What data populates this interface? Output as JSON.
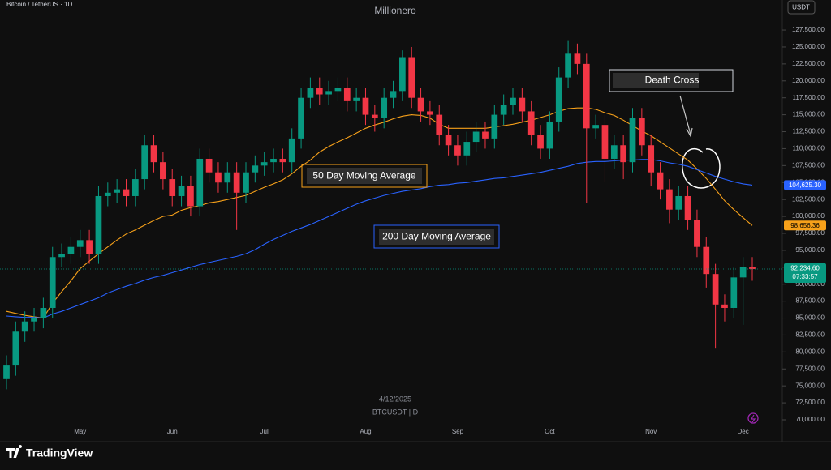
{
  "chart_data": {
    "type": "candlestick",
    "header": "Bitcoin / TetherUS · 1D",
    "title": "Millionero",
    "currency": "USDT",
    "categories": [
      null,
      null,
      null,
      null,
      null,
      null,
      null,
      null,
      "May",
      null,
      null,
      null,
      null,
      null,
      null,
      null,
      null,
      null,
      "Jun",
      null,
      null,
      null,
      null,
      null,
      null,
      null,
      null,
      null,
      "Jul",
      null,
      null,
      null,
      null,
      null,
      null,
      null,
      null,
      null,
      null,
      "Aug",
      null,
      null,
      null,
      null,
      null,
      null,
      null,
      null,
      null,
      "Sep",
      null,
      null,
      null,
      null,
      null,
      null,
      null,
      null,
      null,
      "Oct",
      null,
      null,
      null,
      null,
      null,
      null,
      null,
      null,
      null,
      null,
      "Nov",
      null,
      null,
      null,
      null,
      null,
      null,
      null,
      null,
      null,
      "Dec",
      null
    ],
    "open": [
      76000,
      78000,
      83000,
      84500,
      85000,
      86500,
      94000,
      94500,
      95500,
      96500,
      94500,
      103000,
      103500,
      104000,
      103000,
      105500,
      110500,
      108000,
      105500,
      103000,
      104500,
      101500,
      108500,
      106500,
      105000,
      106500,
      103500,
      106500,
      107500,
      108000,
      108500,
      108000,
      111500,
      117500,
      119000,
      118000,
      118500,
      119000,
      117000,
      117500,
      115000,
      114500,
      117500,
      118500,
      123500,
      117500,
      115500,
      115000,
      112000,
      110500,
      109000,
      111000,
      112500,
      111500,
      115000,
      116500,
      117500,
      115500,
      112000,
      110000,
      114000,
      120500,
      124000,
      122500,
      113000,
      113500,
      108500,
      110500,
      108000,
      114500,
      110500,
      106500,
      104000,
      101000,
      103000,
      99500,
      95500,
      91500,
      87000,
      86500,
      91000,
      92500
    ],
    "high": [
      79500,
      84500,
      86000,
      86500,
      88000,
      95500,
      96000,
      97000,
      98000,
      98000,
      104500,
      105000,
      105500,
      105500,
      107000,
      112000,
      112000,
      109500,
      107000,
      106000,
      106000,
      110000,
      110000,
      108000,
      108000,
      108000,
      108000,
      109000,
      109500,
      110000,
      110000,
      113000,
      119000,
      120500,
      120500,
      120000,
      120500,
      120500,
      119000,
      119000,
      116500,
      119000,
      120000,
      124500,
      125000,
      119000,
      117000,
      116500,
      113500,
      112000,
      112500,
      114000,
      114000,
      116500,
      118000,
      119000,
      119000,
      117000,
      113500,
      115500,
      122000,
      126000,
      125500,
      124000,
      115000,
      115000,
      112000,
      112000,
      116000,
      116000,
      112000,
      108000,
      105500,
      104500,
      104500,
      101000,
      97000,
      93000,
      88500,
      92500,
      94000,
      94000
    ],
    "low": [
      74500,
      76500,
      81500,
      83000,
      83500,
      85000,
      92500,
      93000,
      94000,
      93000,
      93000,
      101500,
      102000,
      101500,
      101500,
      104000,
      106500,
      104000,
      101500,
      101500,
      100000,
      100000,
      105000,
      103500,
      103500,
      98000,
      102000,
      105000,
      106000,
      106500,
      106500,
      106500,
      110000,
      116000,
      116500,
      116500,
      117000,
      115500,
      115500,
      113500,
      112500,
      113000,
      116000,
      117000,
      116000,
      114000,
      113500,
      110500,
      109000,
      107500,
      107500,
      109500,
      110000,
      110000,
      113500,
      115000,
      114000,
      110500,
      108500,
      108500,
      112500,
      119000,
      121000,
      102000,
      111500,
      105000,
      107000,
      105500,
      106500,
      109000,
      104500,
      102500,
      99000,
      99500,
      98000,
      94000,
      89500,
      80500,
      84500,
      85000,
      84000,
      90500
    ],
    "close": [
      78000,
      83000,
      84500,
      85000,
      86500,
      94000,
      94500,
      95500,
      96500,
      94500,
      103000,
      103500,
      104000,
      103000,
      105500,
      110500,
      108000,
      105500,
      103000,
      104500,
      101500,
      108500,
      106500,
      105000,
      106500,
      103500,
      106500,
      107500,
      108000,
      108500,
      108000,
      111500,
      117500,
      119000,
      118000,
      118500,
      119000,
      117000,
      117500,
      115000,
      114500,
      117500,
      118500,
      123500,
      117500,
      115500,
      115000,
      112000,
      110500,
      109000,
      111000,
      112500,
      111500,
      115000,
      116500,
      117500,
      115500,
      112000,
      110000,
      114000,
      120500,
      124000,
      122500,
      113000,
      113500,
      108500,
      110500,
      108000,
      114500,
      110500,
      106500,
      104000,
      101000,
      103000,
      99500,
      95500,
      91500,
      87000,
      86500,
      91000,
      92500,
      92234.6
    ],
    "up_color": "#089981",
    "down_color": "#f23645",
    "close_label": "92,234.60",
    "countdown": "07:33:57",
    "series": [
      {
        "name": "50 Day Moving Average",
        "color": "#f7a11a",
        "last_label": "98,656.36",
        "values": [
          86000,
          85700,
          85400,
          85200,
          85000,
          87200,
          88900,
          90500,
          92300,
          93400,
          94500,
          95500,
          96500,
          97400,
          98000,
          98700,
          99400,
          100000,
          100200,
          100900,
          101300,
          101600,
          102000,
          102200,
          102500,
          102800,
          103100,
          103700,
          104300,
          104800,
          105400,
          106300,
          107400,
          108300,
          109500,
          110300,
          111000,
          111600,
          112300,
          113000,
          113500,
          113900,
          114400,
          114800,
          115000,
          114900,
          114500,
          113600,
          113000,
          113000,
          113000,
          113000,
          113000,
          113200,
          113400,
          113600,
          113900,
          114200,
          114600,
          115000,
          115500,
          115900,
          116000,
          116000,
          115800,
          115300,
          114900,
          114200,
          113400,
          112600,
          111900,
          111000,
          110100,
          109200,
          108300,
          107000,
          105600,
          104000,
          102300,
          101000,
          99800,
          98656.36
        ]
      },
      {
        "name": "200 Day Moving Average",
        "color": "#2962ff",
        "last_label": "104,625.30",
        "values": [
          85300,
          85200,
          85100,
          85100,
          85000,
          85600,
          86000,
          86500,
          87000,
          87500,
          88000,
          88700,
          89200,
          89700,
          90100,
          90600,
          91000,
          91300,
          91700,
          92100,
          92500,
          92900,
          93200,
          93500,
          93800,
          94100,
          94500,
          95100,
          95900,
          96600,
          97200,
          97800,
          98300,
          98800,
          99400,
          100000,
          100600,
          101200,
          101800,
          102300,
          102700,
          103100,
          103400,
          103700,
          103900,
          104100,
          104400,
          104600,
          104700,
          104900,
          105000,
          105200,
          105400,
          105600,
          105700,
          105900,
          106100,
          106300,
          106500,
          106800,
          107100,
          107400,
          107800,
          108000,
          108100,
          108100,
          108200,
          108300,
          108300,
          108400,
          108400,
          108200,
          107900,
          107700,
          107400,
          106900,
          106400,
          105900,
          105500,
          105100,
          104800,
          104625.3
        ]
      }
    ],
    "annotation": "Death Cross",
    "date_label": "4/12/2025",
    "symbol_label": "BTCUSDT | D",
    "ylim": [
      67370,
      131930
    ],
    "yticks": [
      {
        "value": 70000,
        "label": "70,000.00"
      },
      {
        "value": 72500,
        "label": "72,500.00"
      },
      {
        "value": 75000,
        "label": "75,000.00"
      },
      {
        "value": 77500,
        "label": "77,500.00"
      },
      {
        "value": 80000,
        "label": "80,000.00"
      },
      {
        "value": 82500,
        "label": "82,500.00"
      },
      {
        "value": 85000,
        "label": "85,000.00"
      },
      {
        "value": 87500,
        "label": "87,500.00"
      },
      {
        "value": 90000,
        "label": "90,000.00"
      },
      {
        "value": 92500,
        "label": "92,500.00"
      },
      {
        "value": 95000,
        "label": "95,000.00"
      },
      {
        "value": 97500,
        "label": "97,500.00"
      },
      {
        "value": 100000,
        "label": "100,000.00"
      },
      {
        "value": 102500,
        "label": "102,500.00"
      },
      {
        "value": 105000,
        "label": "105,000.00"
      },
      {
        "value": 107500,
        "label": "107,500.00"
      },
      {
        "value": 110000,
        "label": "110,000.00"
      },
      {
        "value": 112500,
        "label": "112,500.00"
      },
      {
        "value": 115000,
        "label": "115,000.00"
      },
      {
        "value": 117500,
        "label": "117,500.00"
      },
      {
        "value": 120000,
        "label": "120,000.00"
      },
      {
        "value": 122500,
        "label": "122,500.00"
      },
      {
        "value": 125000,
        "label": "125,000.00"
      },
      {
        "value": 127500,
        "label": "127,500.00"
      }
    ],
    "grid": false
  },
  "brand": "TradingView"
}
